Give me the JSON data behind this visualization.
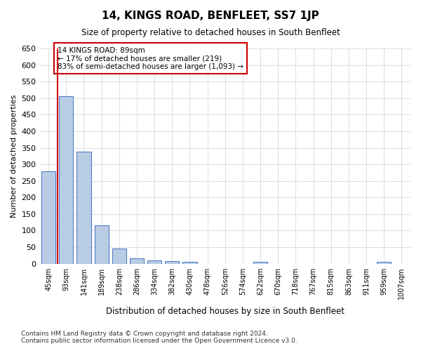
{
  "title": "14, KINGS ROAD, BENFLEET, SS7 1JP",
  "subtitle": "Size of property relative to detached houses in South Benfleet",
  "xlabel": "Distribution of detached houses by size in South Benfleet",
  "ylabel": "Number of detached properties",
  "categories": [
    "45sqm",
    "93sqm",
    "141sqm",
    "189sqm",
    "238sqm",
    "286sqm",
    "334sqm",
    "382sqm",
    "430sqm",
    "478sqm",
    "526sqm",
    "574sqm",
    "622sqm",
    "670sqm",
    "718sqm",
    "767sqm",
    "815sqm",
    "863sqm",
    "911sqm",
    "959sqm",
    "1007sqm"
  ],
  "values": [
    280,
    505,
    338,
    115,
    46,
    16,
    10,
    8,
    5,
    0,
    0,
    0,
    5,
    0,
    0,
    0,
    0,
    0,
    0,
    5,
    0
  ],
  "bar_color": "#b8cce4",
  "bar_edge_color": "#4472c4",
  "ylim": [
    0,
    650
  ],
  "yticks": [
    0,
    50,
    100,
    150,
    200,
    250,
    300,
    350,
    400,
    450,
    500,
    550,
    600,
    650
  ],
  "annotation_box_text": "14 KINGS ROAD: 89sqm\n← 17% of detached houses are smaller (219)\n83% of semi-detached houses are larger (1,093) →",
  "red_line_x": 0.5,
  "footnote": "Contains HM Land Registry data © Crown copyright and database right 2024.\nContains public sector information licensed under the Open Government Licence v3.0.",
  "background_color": "#ffffff",
  "grid_color": "#dddddd",
  "annotation_box_color": "#ffffff",
  "annotation_box_edge_color": "#cc0000",
  "red_line_color": "#cc0000"
}
